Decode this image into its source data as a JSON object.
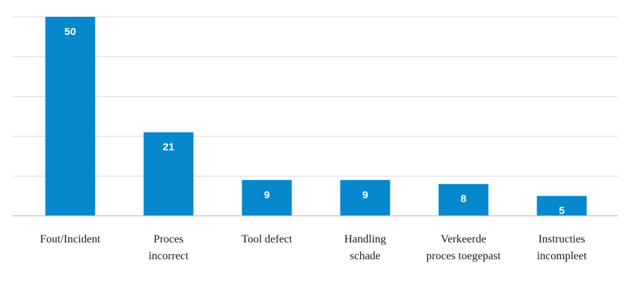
{
  "chart_data": {
    "type": "bar",
    "title": "",
    "xlabel": "",
    "ylabel": "",
    "categories": [
      "Fout/Incident",
      "Proces incorrect",
      "Tool defect",
      "Handling schade",
      "Verkeerde proces toegepast",
      "Instructies incompleet"
    ],
    "category_lines": [
      [
        "Fout/Incident"
      ],
      [
        "Proces",
        "incorrect"
      ],
      [
        "Tool defect"
      ],
      [
        "Handling",
        "schade"
      ],
      [
        "Verkeerde",
        "proces toegepast"
      ],
      [
        "Instructies",
        "incompleet"
      ]
    ],
    "values": [
      50,
      21,
      9,
      9,
      8,
      5
    ],
    "data_labels": [
      "50",
      "21",
      "9",
      "9",
      "8",
      "5"
    ],
    "ylim": [
      0,
      50
    ],
    "grid": true,
    "legend": "none",
    "colors": {
      "bar": "#0787cc",
      "grid": "#d9d9d9",
      "axis": "#bfbfbf",
      "label_text": "#ffffff",
      "category_text": "#1a1a1a"
    }
  }
}
